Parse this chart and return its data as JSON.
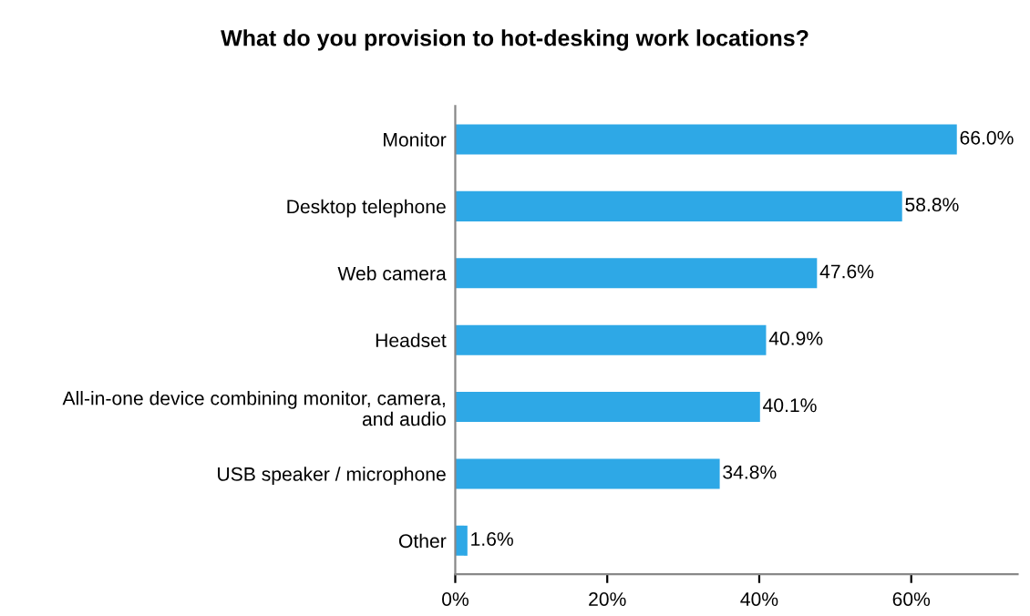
{
  "chart_data": {
    "type": "bar",
    "orientation": "horizontal",
    "title": "What do you provision to hot-desking work locations?",
    "categories": [
      "Monitor",
      "Desktop telephone",
      "Web camera",
      "Headset",
      "All-in-one device combining monitor, camera, and audio",
      "USB speaker / microphone",
      "Other"
    ],
    "values": [
      66.0,
      58.8,
      47.6,
      40.9,
      40.1,
      34.8,
      1.6
    ],
    "value_labels": [
      "66.0%",
      "58.8%",
      "47.6%",
      "40.9%",
      "40.1%",
      "34.8%",
      "1.6%"
    ],
    "color": "#2ea8e6",
    "xlim": [
      0,
      74
    ],
    "xticks": [
      {
        "value": 0,
        "label": "0%"
      },
      {
        "value": 20,
        "label": "20%"
      },
      {
        "value": 40,
        "label": "40%"
      },
      {
        "value": 60,
        "label": "60%"
      }
    ],
    "grid": false,
    "legend": false
  }
}
